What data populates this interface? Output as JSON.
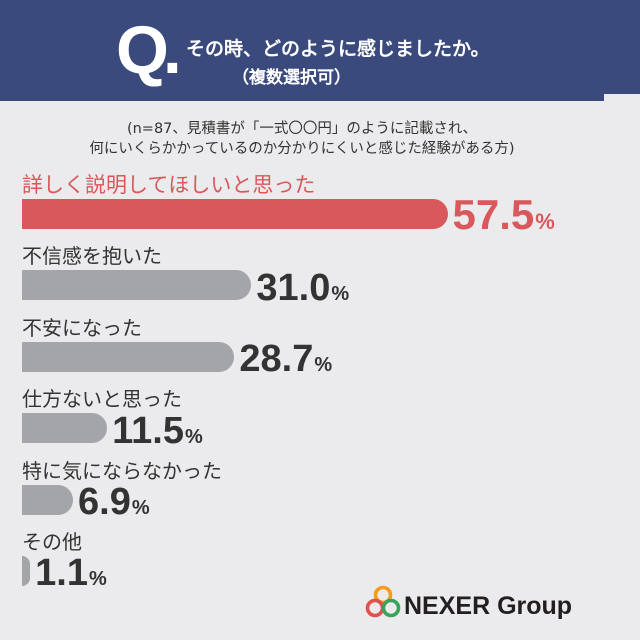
{
  "header": {
    "q_label": "Q."
  },
  "chart_data": {
    "type": "bar",
    "orientation": "horizontal",
    "title": "その時、どのように感じましたか。",
    "title_note": "（複数選択可）",
    "subtitle": [
      "(n=87、見積書が「一式〇〇円」のように記載され、",
      "何にいくらかかっているのか分かりにくいと感じた経験がある方)"
    ],
    "categories": [
      "詳しく説明してほしいと思った",
      "不信感を抱いた",
      "不安になった",
      "仕方ないと思った",
      "特に気にならなかった",
      "その他"
    ],
    "values": [
      57.5,
      31.0,
      28.7,
      11.5,
      6.9,
      1.1
    ],
    "value_labels": [
      "57.5",
      "31.0",
      "28.7",
      "11.5",
      "6.9",
      "1.1"
    ],
    "unit": "%",
    "highlight_index": 0,
    "grid": false
  },
  "colors": {
    "page_background": "#ebebed",
    "header_background": "#3b4a7c",
    "header_text": "#ffffff",
    "highlight": "#d9585b",
    "bar": "#a4a5a9",
    "text": "#333333",
    "logo_text": "#231f20",
    "logo_orange": "#f39c1f",
    "logo_red": "#e2504c",
    "logo_green": "#3aa35a"
  },
  "logo": {
    "text": "NEXER Group",
    "icon": "nexer-rings-icon"
  }
}
